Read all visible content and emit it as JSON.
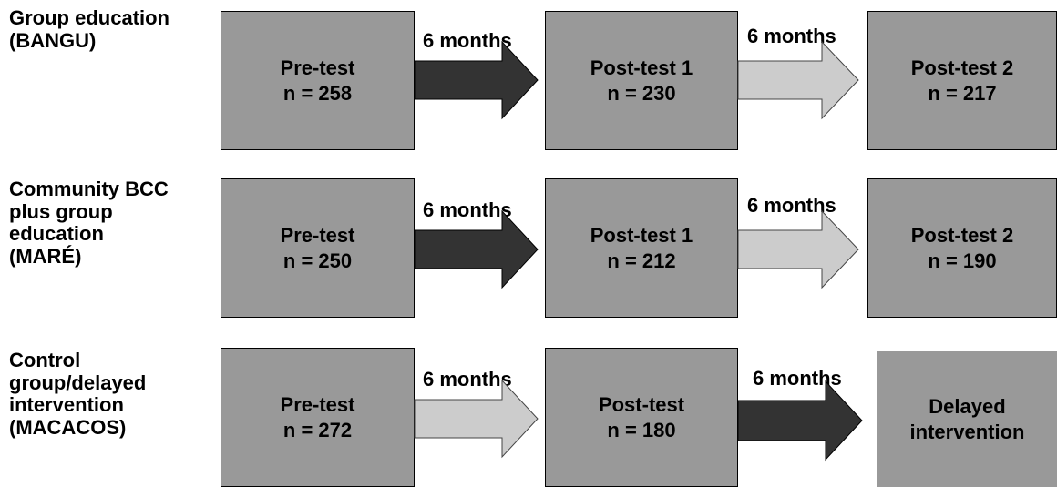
{
  "rows": [
    {
      "label": "Group education\n(BANGU)",
      "boxes": [
        {
          "line1": "Pre-test",
          "line2": "n = 258"
        },
        {
          "line1": "Post-test 1",
          "line2": "n = 230"
        },
        {
          "line1": "Post-test 2",
          "line2": "n = 217"
        }
      ],
      "arrows": [
        {
          "label": "6 months",
          "style": "dark"
        },
        {
          "label": "6 months",
          "style": "light"
        }
      ]
    },
    {
      "label": "Community BCC\nplus group\neducation\n(MARÉ)",
      "boxes": [
        {
          "line1": "Pre-test",
          "line2": "n = 250"
        },
        {
          "line1": "Post-test 1",
          "line2": "n = 212"
        },
        {
          "line1": "Post-test 2",
          "line2": "n = 190"
        }
      ],
      "arrows": [
        {
          "label": "6 months",
          "style": "dark"
        },
        {
          "label": "6 months",
          "style": "light"
        }
      ]
    },
    {
      "label": "Control\ngroup/delayed\nintervention\n(MACACOS)",
      "boxes": [
        {
          "line1": "Pre-test",
          "line2": "n = 272"
        },
        {
          "line1": "Post-test",
          "line2": "n = 180"
        },
        {
          "line1": "Delayed",
          "line2": "intervention"
        }
      ],
      "arrows": [
        {
          "label": "6 months",
          "style": "light"
        },
        {
          "label": "6 months",
          "style": "dark"
        }
      ]
    }
  ],
  "colors": {
    "box_fill": "#999999",
    "arrow_dark": "#333333",
    "arrow_light": "#cccccc"
  }
}
